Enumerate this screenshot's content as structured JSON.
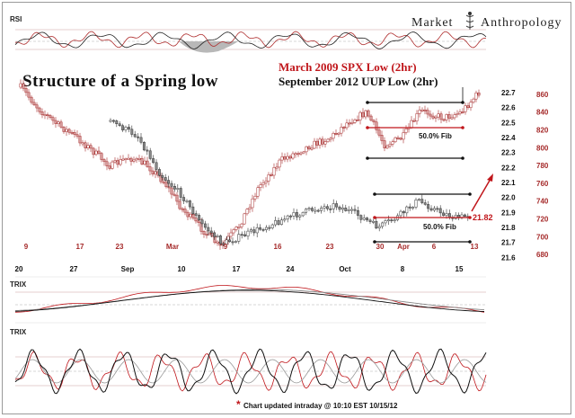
{
  "brand": {
    "name_left": "Market",
    "name_right": "Anthropology"
  },
  "footnote": {
    "star": "*",
    "text": "Chart updated intraday @ 10:10 EST 10/15/12"
  },
  "chart_data": {
    "type": "candlestick-overlay",
    "title": "Structure of a Spring low",
    "subtitle_1": "March 2009 SPX Low (2hr)",
    "subtitle_2": "September 2012 UUP Low (2hr)",
    "panels": {
      "rsi": {
        "label": "RSI"
      },
      "trix_1": {
        "label": "TRIX"
      },
      "trix_2": {
        "label": "TRIX"
      }
    },
    "colors": {
      "spx": "#a52a2a",
      "spx_light": "#d9a0a0",
      "uup": "#333333",
      "fib_red": "#c0161b",
      "arrow": "#c0161b"
    },
    "spx_axis": {
      "ticks": [
        860,
        840,
        820,
        800,
        780,
        760,
        740,
        720,
        700,
        680
      ],
      "range": [
        670,
        872
      ],
      "x_ticks": [
        "9",
        "17",
        "23",
        "Mar",
        "9",
        "16",
        "23",
        "30",
        "Apr",
        "6",
        "13"
      ]
    },
    "uup_axis": {
      "ticks": [
        22.7,
        22.6,
        22.5,
        22.4,
        22.3,
        22.2,
        22.1,
        22.0,
        21.9,
        21.8,
        21.7,
        21.6
      ],
      "range": [
        21.56,
        22.76
      ],
      "x_ticks": [
        "20",
        "27",
        "Sep",
        "10",
        "17",
        "24",
        "Oct",
        "8",
        "15"
      ]
    },
    "annotations": {
      "spx_fib": "50.0% Fib",
      "uup_fib": "50.0% Fib",
      "uup_last": "21.82"
    }
  }
}
